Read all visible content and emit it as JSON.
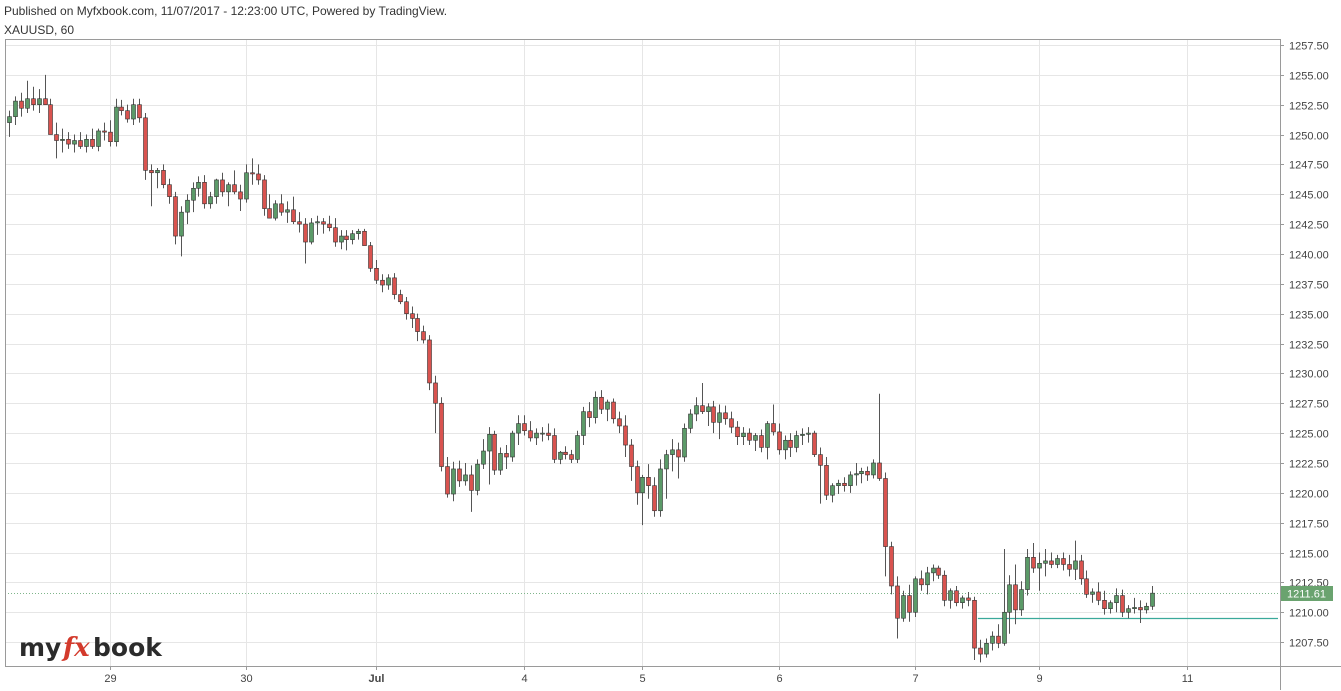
{
  "header": {
    "published": "Published on Myfxbook.com, 11/07/2017 - 12:23:00 UTC, Powered by TradingView.",
    "symbol": "XAUUSD, 60"
  },
  "logo": {
    "part1": "my",
    "part2": "fx",
    "part3": "book"
  },
  "colors": {
    "up": "#5b9a68",
    "down": "#d9534f",
    "wick": "#555555",
    "grid": "#e6e6e6",
    "hline": "#3aa99a",
    "lastBg": "#6aa36f"
  },
  "chart_data": {
    "type": "candlestick",
    "title": "",
    "ylim": [
      1205.5,
      1258
    ],
    "yticks": [
      "1257.50",
      "1255.00",
      "1252.50",
      "1250.00",
      "1247.50",
      "1245.00",
      "1242.50",
      "1240.00",
      "1237.50",
      "1235.00",
      "1232.50",
      "1230.00",
      "1227.50",
      "1225.00",
      "1222.50",
      "1220.00",
      "1217.50",
      "1215.00",
      "1212.50",
      "1210.00",
      "1207.50"
    ],
    "xticks": [
      {
        "label": "29",
        "bar": 17,
        "bold": false
      },
      {
        "label": "30",
        "bar": 40,
        "bold": false
      },
      {
        "label": "Jul",
        "bar": 62,
        "bold": true
      },
      {
        "label": "4",
        "bar": 87,
        "bold": false
      },
      {
        "label": "5",
        "bar": 107,
        "bold": false
      },
      {
        "label": "6",
        "bar": 130,
        "bold": false
      },
      {
        "label": "7",
        "bar": 153,
        "bold": false
      },
      {
        "label": "9",
        "bar": 174,
        "bold": false
      },
      {
        "label": "11",
        "bar": 199,
        "bold": false
      }
    ],
    "last_price": "1211.61",
    "horizontal_line": 1209.5,
    "horizontal_line_from_bar": 164,
    "bars": [
      [
        1251.0,
        1252.0,
        1249.8,
        1251.5
      ],
      [
        1251.5,
        1253.2,
        1250.8,
        1252.8
      ],
      [
        1252.8,
        1253.5,
        1251.5,
        1252.2
      ],
      [
        1252.2,
        1254.5,
        1251.8,
        1253.0
      ],
      [
        1253.0,
        1254.0,
        1252.0,
        1252.5
      ],
      [
        1252.5,
        1253.8,
        1251.8,
        1253.0
      ],
      [
        1253.0,
        1255.0,
        1252.5,
        1252.5
      ],
      [
        1252.5,
        1253.0,
        1250.0,
        1250.0
      ],
      [
        1250.0,
        1251.0,
        1248.0,
        1249.5
      ],
      [
        1249.5,
        1250.5,
        1248.5,
        1249.6
      ],
      [
        1249.6,
        1250.2,
        1248.8,
        1249.2
      ],
      [
        1249.2,
        1250.0,
        1248.5,
        1249.5
      ],
      [
        1249.5,
        1250.2,
        1248.8,
        1249.0
      ],
      [
        1249.0,
        1250.0,
        1248.5,
        1249.6
      ],
      [
        1249.6,
        1250.5,
        1248.8,
        1249.0
      ],
      [
        1249.0,
        1250.5,
        1248.6,
        1250.3
      ],
      [
        1250.3,
        1251.0,
        1249.5,
        1250.2
      ],
      [
        1250.2,
        1251.2,
        1249.0,
        1249.4
      ],
      [
        1249.4,
        1253.0,
        1249.0,
        1252.3
      ],
      [
        1252.3,
        1252.9,
        1251.6,
        1252.0
      ],
      [
        1252.0,
        1252.5,
        1251.0,
        1251.3
      ],
      [
        1251.3,
        1253.0,
        1250.8,
        1252.5
      ],
      [
        1252.5,
        1253.0,
        1251.0,
        1251.4
      ],
      [
        1251.4,
        1251.8,
        1246.2,
        1247.0
      ],
      [
        1247.0,
        1247.5,
        1244.0,
        1246.8
      ],
      [
        1246.8,
        1247.2,
        1245.5,
        1247.0
      ],
      [
        1247.0,
        1247.5,
        1245.5,
        1245.8
      ],
      [
        1245.8,
        1246.3,
        1244.2,
        1244.8
      ],
      [
        1244.8,
        1245.2,
        1240.8,
        1241.5
      ],
      [
        1241.5,
        1244.0,
        1239.8,
        1243.5
      ],
      [
        1243.5,
        1245.0,
        1242.5,
        1244.5
      ],
      [
        1244.5,
        1246.0,
        1243.5,
        1245.5
      ],
      [
        1245.5,
        1246.5,
        1244.8,
        1246.0
      ],
      [
        1246.0,
        1246.6,
        1243.8,
        1244.2
      ],
      [
        1244.2,
        1245.2,
        1243.8,
        1244.8
      ],
      [
        1244.8,
        1246.3,
        1244.2,
        1246.2
      ],
      [
        1246.2,
        1246.8,
        1244.8,
        1245.2
      ],
      [
        1245.2,
        1246.0,
        1244.0,
        1245.8
      ],
      [
        1245.8,
        1247.0,
        1245.0,
        1245.2
      ],
      [
        1245.2,
        1245.8,
        1243.6,
        1244.6
      ],
      [
        1244.6,
        1247.5,
        1244.3,
        1246.8
      ],
      [
        1246.8,
        1248.0,
        1245.8,
        1246.7
      ],
      [
        1246.7,
        1247.5,
        1245.8,
        1246.2
      ],
      [
        1246.2,
        1246.6,
        1243.2,
        1243.8
      ],
      [
        1243.8,
        1245.0,
        1243.0,
        1243.0
      ],
      [
        1243.0,
        1244.5,
        1242.8,
        1244.2
      ],
      [
        1244.2,
        1245.0,
        1243.2,
        1243.5
      ],
      [
        1243.5,
        1244.4,
        1242.6,
        1243.7
      ],
      [
        1243.7,
        1244.8,
        1242.5,
        1242.7
      ],
      [
        1242.7,
        1243.5,
        1241.8,
        1242.5
      ],
      [
        1242.5,
        1243.0,
        1239.2,
        1241.0
      ],
      [
        1241.0,
        1243.0,
        1240.8,
        1242.6
      ],
      [
        1242.6,
        1243.2,
        1241.6,
        1242.7
      ],
      [
        1242.7,
        1243.0,
        1241.7,
        1242.5
      ],
      [
        1242.5,
        1243.2,
        1241.9,
        1242.2
      ],
      [
        1242.2,
        1243.0,
        1240.6,
        1241.0
      ],
      [
        1241.0,
        1242.0,
        1240.4,
        1241.5
      ],
      [
        1241.5,
        1242.0,
        1240.3,
        1241.2
      ],
      [
        1241.2,
        1242.0,
        1240.8,
        1241.7
      ],
      [
        1241.7,
        1242.1,
        1241.2,
        1241.9
      ],
      [
        1241.9,
        1242.1,
        1240.8,
        1240.7
      ],
      [
        1240.7,
        1241.0,
        1238.5,
        1238.8
      ],
      [
        1238.8,
        1239.5,
        1237.5,
        1237.8
      ],
      [
        1237.8,
        1238.3,
        1236.8,
        1237.4
      ],
      [
        1237.4,
        1238.3,
        1237.0,
        1238.0
      ],
      [
        1238.0,
        1238.4,
        1236.2,
        1236.6
      ],
      [
        1236.6,
        1237.0,
        1235.8,
        1236.0
      ],
      [
        1236.0,
        1236.4,
        1234.5,
        1235.0
      ],
      [
        1235.0,
        1235.6,
        1233.8,
        1234.6
      ],
      [
        1234.6,
        1235.0,
        1232.7,
        1233.5
      ],
      [
        1233.5,
        1234.0,
        1232.5,
        1232.8
      ],
      [
        1232.8,
        1233.2,
        1228.6,
        1229.2
      ],
      [
        1229.2,
        1229.8,
        1225.0,
        1227.5
      ],
      [
        1227.5,
        1228.0,
        1221.8,
        1222.2
      ],
      [
        1222.2,
        1223.0,
        1219.6,
        1219.9
      ],
      [
        1219.9,
        1222.6,
        1219.3,
        1222.0
      ],
      [
        1222.0,
        1222.7,
        1220.5,
        1221.0
      ],
      [
        1221.0,
        1222.5,
        1220.6,
        1221.5
      ],
      [
        1221.5,
        1222.3,
        1218.4,
        1220.2
      ],
      [
        1220.2,
        1222.8,
        1219.8,
        1222.4
      ],
      [
        1222.4,
        1224.5,
        1222.0,
        1223.5
      ],
      [
        1223.5,
        1225.5,
        1220.7,
        1224.9
      ],
      [
        1224.9,
        1225.2,
        1221.5,
        1221.9
      ],
      [
        1221.9,
        1223.8,
        1221.5,
        1223.3
      ],
      [
        1223.3,
        1224.0,
        1222.0,
        1223.0
      ],
      [
        1223.0,
        1225.2,
        1222.6,
        1225.0
      ],
      [
        1225.0,
        1226.5,
        1224.0,
        1225.8
      ],
      [
        1225.8,
        1226.5,
        1224.8,
        1225.2
      ],
      [
        1225.2,
        1226.0,
        1224.3,
        1224.6
      ],
      [
        1224.6,
        1225.4,
        1224.0,
        1225.0
      ],
      [
        1225.0,
        1225.5,
        1224.3,
        1225.0
      ],
      [
        1225.0,
        1225.8,
        1224.4,
        1224.8
      ],
      [
        1224.8,
        1225.4,
        1222.5,
        1222.8
      ],
      [
        1222.8,
        1223.5,
        1222.4,
        1223.4
      ],
      [
        1223.4,
        1223.9,
        1222.8,
        1223.2
      ],
      [
        1223.2,
        1223.6,
        1222.5,
        1222.8
      ],
      [
        1222.8,
        1225.2,
        1222.5,
        1224.8
      ],
      [
        1224.8,
        1227.2,
        1224.0,
        1226.8
      ],
      [
        1226.8,
        1227.6,
        1225.5,
        1226.3
      ],
      [
        1226.3,
        1228.5,
        1225.8,
        1228.0
      ],
      [
        1228.0,
        1228.6,
        1226.6,
        1227.0
      ],
      [
        1227.0,
        1227.8,
        1226.0,
        1227.6
      ],
      [
        1227.6,
        1227.9,
        1225.8,
        1226.2
      ],
      [
        1226.2,
        1226.8,
        1225.0,
        1225.6
      ],
      [
        1225.6,
        1226.5,
        1223.0,
        1224.0
      ],
      [
        1224.0,
        1224.5,
        1221.0,
        1222.2
      ],
      [
        1222.2,
        1222.7,
        1219.0,
        1220.0
      ],
      [
        1220.0,
        1221.5,
        1217.3,
        1221.3
      ],
      [
        1221.3,
        1222.4,
        1219.5,
        1220.6
      ],
      [
        1220.6,
        1221.3,
        1218.0,
        1218.5
      ],
      [
        1218.5,
        1222.8,
        1218.0,
        1222.0
      ],
      [
        1222.0,
        1223.6,
        1219.5,
        1223.2
      ],
      [
        1223.2,
        1224.5,
        1221.8,
        1223.6
      ],
      [
        1223.6,
        1224.2,
        1221.2,
        1223.0
      ],
      [
        1223.0,
        1225.8,
        1222.6,
        1225.4
      ],
      [
        1225.4,
        1227.0,
        1225.0,
        1226.6
      ],
      [
        1226.6,
        1228.0,
        1226.0,
        1227.3
      ],
      [
        1227.3,
        1229.2,
        1226.6,
        1226.8
      ],
      [
        1226.8,
        1227.5,
        1225.6,
        1227.2
      ],
      [
        1227.2,
        1227.7,
        1225.0,
        1225.9
      ],
      [
        1225.9,
        1227.4,
        1224.5,
        1226.7
      ],
      [
        1226.7,
        1227.3,
        1225.7,
        1226.2
      ],
      [
        1226.2,
        1226.8,
        1225.0,
        1225.5
      ],
      [
        1225.5,
        1226.0,
        1224.0,
        1224.7
      ],
      [
        1224.7,
        1225.5,
        1224.0,
        1225.0
      ],
      [
        1225.0,
        1225.4,
        1224.0,
        1224.4
      ],
      [
        1224.4,
        1225.0,
        1223.5,
        1224.8
      ],
      [
        1224.8,
        1225.3,
        1223.4,
        1223.8
      ],
      [
        1223.8,
        1226.0,
        1222.8,
        1225.8
      ],
      [
        1225.8,
        1227.4,
        1224.8,
        1225.1
      ],
      [
        1225.1,
        1225.8,
        1223.2,
        1223.6
      ],
      [
        1223.6,
        1224.8,
        1222.8,
        1224.4
      ],
      [
        1224.4,
        1225.0,
        1223.0,
        1223.8
      ],
      [
        1223.8,
        1225.2,
        1223.4,
        1224.8
      ],
      [
        1224.8,
        1225.4,
        1224.0,
        1224.9
      ],
      [
        1224.9,
        1225.5,
        1224.2,
        1225.0
      ],
      [
        1225.0,
        1225.2,
        1223.0,
        1223.2
      ],
      [
        1223.2,
        1223.8,
        1219.1,
        1222.3
      ],
      [
        1222.3,
        1223.0,
        1219.4,
        1219.8
      ],
      [
        1219.8,
        1220.8,
        1219.2,
        1220.6
      ],
      [
        1220.6,
        1221.1,
        1219.9,
        1220.8
      ],
      [
        1220.8,
        1221.3,
        1220.1,
        1220.6
      ],
      [
        1220.6,
        1221.8,
        1220.0,
        1221.5
      ],
      [
        1221.5,
        1222.5,
        1220.6,
        1221.6
      ],
      [
        1221.6,
        1222.1,
        1220.8,
        1221.8
      ],
      [
        1221.8,
        1222.2,
        1221.0,
        1221.5
      ],
      [
        1221.5,
        1222.8,
        1221.2,
        1222.5
      ],
      [
        1222.5,
        1228.3,
        1221.0,
        1221.2
      ],
      [
        1221.2,
        1221.7,
        1213.0,
        1215.5
      ],
      [
        1215.5,
        1215.9,
        1211.5,
        1212.2
      ],
      [
        1212.2,
        1213.0,
        1207.8,
        1209.5
      ],
      [
        1209.5,
        1211.8,
        1209.2,
        1211.4
      ],
      [
        1211.4,
        1212.3,
        1209.2,
        1210.0
      ],
      [
        1210.0,
        1213.0,
        1209.6,
        1212.8
      ],
      [
        1212.8,
        1213.5,
        1211.8,
        1212.3
      ],
      [
        1212.3,
        1213.8,
        1211.5,
        1213.3
      ],
      [
        1213.3,
        1214.0,
        1212.6,
        1213.7
      ],
      [
        1213.7,
        1213.9,
        1212.8,
        1213.1
      ],
      [
        1213.1,
        1213.5,
        1210.5,
        1211.0
      ],
      [
        1211.0,
        1212.0,
        1210.3,
        1211.8
      ],
      [
        1211.8,
        1212.2,
        1210.5,
        1210.8
      ],
      [
        1210.8,
        1211.4,
        1210.3,
        1211.2
      ],
      [
        1211.2,
        1211.7,
        1210.5,
        1211.0
      ],
      [
        1211.0,
        1211.3,
        1206.0,
        1207.0
      ],
      [
        1207.0,
        1207.7,
        1205.8,
        1206.5
      ],
      [
        1206.5,
        1207.8,
        1206.2,
        1207.4
      ],
      [
        1207.4,
        1208.4,
        1206.8,
        1208.0
      ],
      [
        1208.0,
        1209.0,
        1207.0,
        1207.4
      ],
      [
        1207.4,
        1215.3,
        1207.2,
        1210.0
      ],
      [
        1210.0,
        1213.1,
        1208.2,
        1212.3
      ],
      [
        1212.3,
        1214.0,
        1209.0,
        1210.2
      ],
      [
        1210.2,
        1212.6,
        1209.7,
        1211.9
      ],
      [
        1211.9,
        1215.3,
        1211.4,
        1214.6
      ],
      [
        1214.6,
        1215.8,
        1213.3,
        1213.7
      ],
      [
        1213.7,
        1215.0,
        1211.8,
        1214.1
      ],
      [
        1214.1,
        1215.3,
        1213.0,
        1214.3
      ],
      [
        1214.3,
        1215.0,
        1213.7,
        1214.0
      ],
      [
        1214.0,
        1214.8,
        1213.7,
        1214.5
      ],
      [
        1214.5,
        1215.0,
        1213.5,
        1214.0
      ],
      [
        1214.0,
        1214.8,
        1213.0,
        1213.6
      ],
      [
        1213.6,
        1216.0,
        1212.7,
        1214.3
      ],
      [
        1214.3,
        1214.8,
        1212.3,
        1212.8
      ],
      [
        1212.8,
        1213.5,
        1211.2,
        1211.5
      ],
      [
        1211.5,
        1212.0,
        1210.8,
        1211.7
      ],
      [
        1211.7,
        1212.5,
        1210.6,
        1211.0
      ],
      [
        1211.0,
        1211.8,
        1209.8,
        1210.3
      ],
      [
        1210.3,
        1211.0,
        1209.9,
        1210.8
      ],
      [
        1210.8,
        1212.0,
        1210.0,
        1211.4
      ],
      [
        1211.4,
        1211.9,
        1209.6,
        1210.0
      ],
      [
        1210.0,
        1210.6,
        1209.5,
        1210.3
      ],
      [
        1210.3,
        1211.2,
        1209.9,
        1210.4
      ],
      [
        1210.4,
        1211.0,
        1209.1,
        1210.2
      ],
      [
        1210.2,
        1210.8,
        1209.9,
        1210.5
      ],
      [
        1210.5,
        1212.2,
        1210.2,
        1211.6
      ]
    ]
  }
}
